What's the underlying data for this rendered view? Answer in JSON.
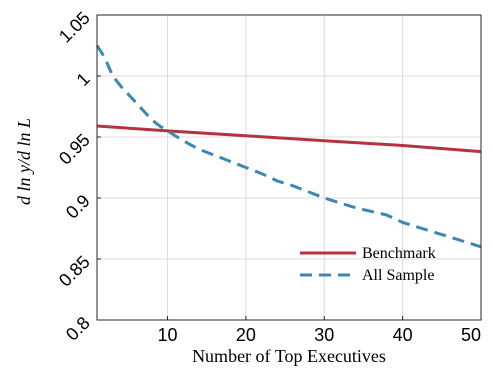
{
  "chart_data": {
    "type": "line",
    "xlabel": "Number of Top Executives",
    "ylabel": "d ln y/d ln L",
    "xlim": [
      1,
      50
    ],
    "ylim": [
      0.8,
      1.05
    ],
    "xticks": [
      10,
      20,
      30,
      40,
      50
    ],
    "xtick_labels": [
      "10",
      "20",
      "30",
      "40",
      "50"
    ],
    "yticks": [
      0.8,
      0.85,
      0.9,
      0.95,
      1.0,
      1.05
    ],
    "ytick_labels": [
      "0.8",
      "0.85",
      "0.9",
      "0.95",
      "1",
      "1.05"
    ],
    "grid": true,
    "legend_position": "bottom-right",
    "series": [
      {
        "name": "Benchmark",
        "style": "solid",
        "color": "#b5323e",
        "x": [
          1,
          10,
          20,
          30,
          40,
          50
        ],
        "y": [
          0.959,
          0.955,
          0.951,
          0.947,
          0.943,
          0.938
        ]
      },
      {
        "name": "All Sample",
        "style": "dashed",
        "color": "#3a87b5",
        "x": [
          1,
          2,
          3,
          4,
          5,
          6,
          7,
          8,
          9,
          10,
          12,
          14,
          16,
          18,
          20,
          22,
          24,
          26,
          28,
          30,
          32,
          34,
          36,
          38,
          40,
          42,
          44,
          46,
          48,
          50
        ],
        "y": [
          1.025,
          1.015,
          1.0,
          0.992,
          0.985,
          0.978,
          0.971,
          0.964,
          0.959,
          0.955,
          0.947,
          0.94,
          0.935,
          0.93,
          0.925,
          0.92,
          0.914,
          0.91,
          0.905,
          0.9,
          0.896,
          0.892,
          0.889,
          0.886,
          0.88,
          0.876,
          0.872,
          0.868,
          0.864,
          0.86
        ]
      }
    ]
  }
}
